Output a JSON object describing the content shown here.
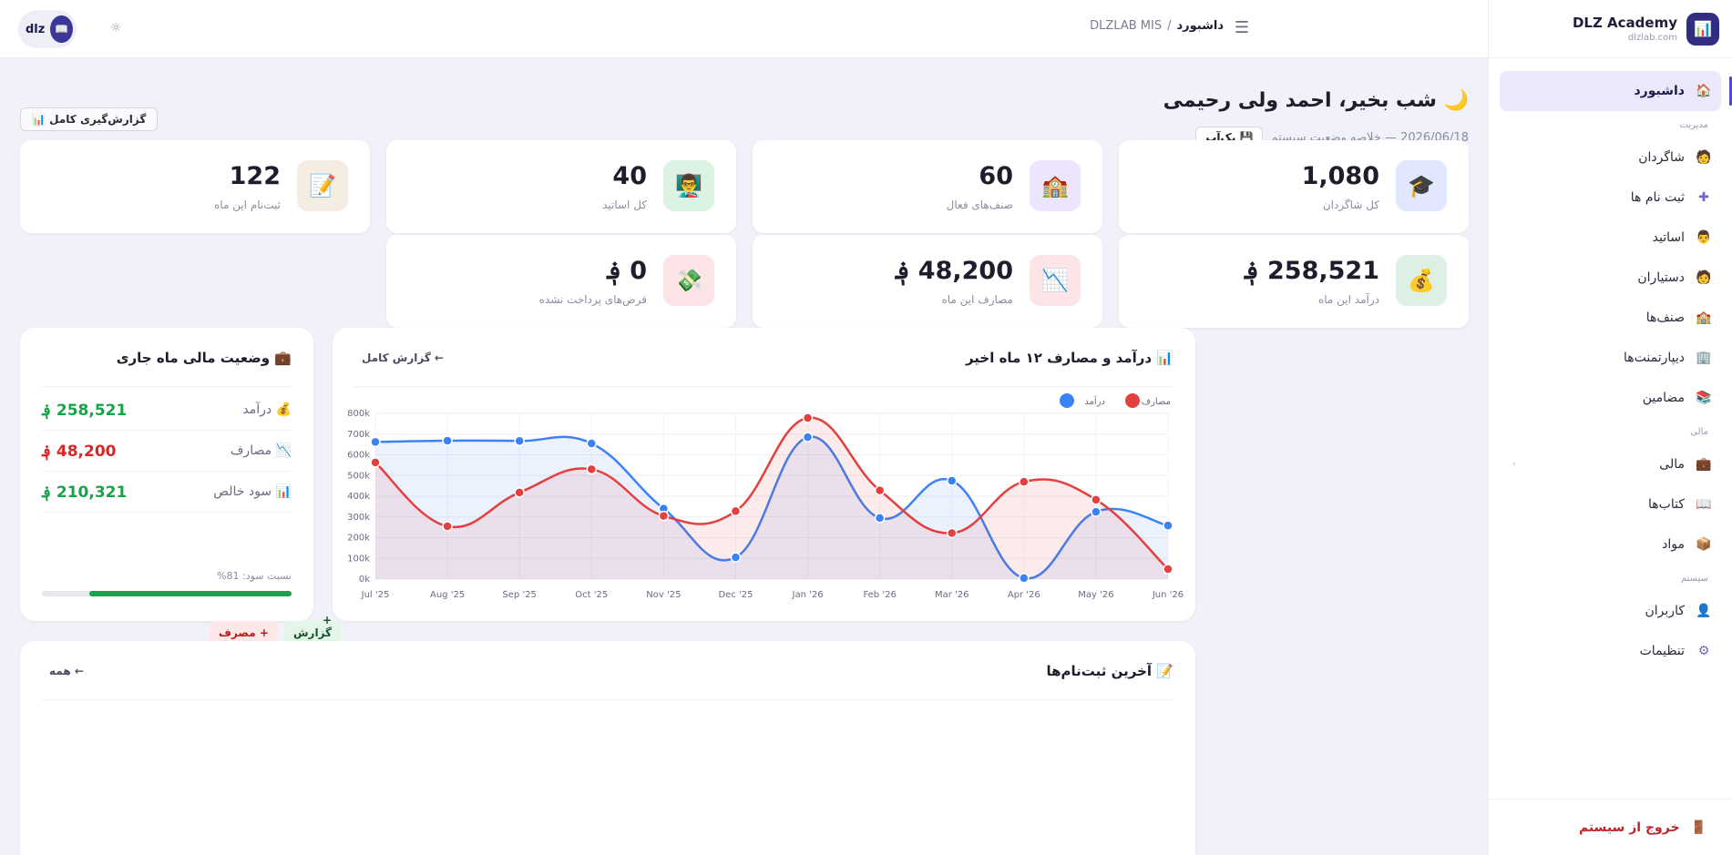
{
  "brand": {
    "name": "DLZ Academy",
    "domain": "dlzlab.com",
    "logo_icon": "📊"
  },
  "topbar": {
    "user_name": "dlz",
    "avatar_icon": "📖",
    "theme_icon": "☼",
    "breadcrumb_root": "DLZLAB MIS",
    "breadcrumb_sep": "/",
    "breadcrumb_current": "داشبورد",
    "menu_icon": "☰"
  },
  "sidebar": {
    "items_top": [
      {
        "label": "داشبورد",
        "icon": "🏠",
        "active": true
      }
    ],
    "section_manage": "مدیریت",
    "items_manage": [
      {
        "label": "شاگردان",
        "icon": "🧑"
      },
      {
        "label": "ثبت نام ها",
        "icon": "✚"
      },
      {
        "label": "اساتید",
        "icon": "👨"
      },
      {
        "label": "دستیاران",
        "icon": "🧑"
      },
      {
        "label": "صنف‌ها",
        "icon": "🏫"
      },
      {
        "label": "دیپارتمنت‌ها",
        "icon": "🏢"
      },
      {
        "label": "مضامین",
        "icon": "📚"
      }
    ],
    "section_finance": "مالی",
    "items_finance": [
      {
        "label": "مالی",
        "icon": "💼",
        "caret": "‹"
      },
      {
        "label": "کتاب‌ها",
        "icon": "📖"
      },
      {
        "label": "مواد",
        "icon": "📦"
      }
    ],
    "section_system": "سیستم",
    "items_system": [
      {
        "label": "کاربران",
        "icon": "👤"
      },
      {
        "label": "تنظیمات",
        "icon": "⚙"
      }
    ],
    "logout_label": "خروج از سیستم",
    "logout_icon": "🚪"
  },
  "header": {
    "greeting": "شب بخیر، احمد ولی رحیمی",
    "greeting_icon": "🌙",
    "subtitle": "2026/06/18 — خلاصه وضعیت سیستم",
    "backup_label": "بک‌آپ",
    "backup_icon": "💾",
    "full_report_label": "گزارش‌گیری کامل",
    "full_report_icon": "📊"
  },
  "stats": [
    {
      "value": "1,080",
      "label": "کل شاگردان",
      "icon": "🎓",
      "bg": "#e0e7ff"
    },
    {
      "value": "60",
      "label": "صنف‌های فعال",
      "icon": "🏫",
      "bg": "#ede4fd"
    },
    {
      "value": "40",
      "label": "کل اساتید",
      "icon": "👨‍🏫",
      "bg": "#dcf3e3"
    },
    {
      "value": "122",
      "label": "ثبت‌نام این ماه",
      "icon": "📝",
      "bg": "#f5ede2"
    },
    {
      "value": "258,521 ؋",
      "label": "درآمد این ماه",
      "icon": "💰",
      "bg": "#dcf1e4"
    },
    {
      "value": "48,200 ؋",
      "label": "مصارف این ماه",
      "icon": "📉",
      "bg": "#fde4e6"
    },
    {
      "value": "0 ؋",
      "label": "قرض‌های پرداخت نشده",
      "icon": "💸",
      "bg": "#fde4e6"
    }
  ],
  "finance": {
    "title": "وضعیت مالی ماه جاری",
    "title_icon": "💼",
    "rows": [
      {
        "label": "درآمد",
        "icon": "💰",
        "value": "258,521 ؋",
        "color": "#16a34a"
      },
      {
        "label": "مصارف",
        "icon": "📉",
        "value": "48,200 ؋",
        "color": "#dc2626"
      },
      {
        "label": "سود خالص",
        "icon": "📊",
        "value": "210,321 ؋",
        "color": "#16a34a"
      }
    ],
    "profit_ratio_label": "نسبت سود: 81%",
    "profit_ratio": 0.81,
    "btn_report": "+ گزارش کلی",
    "btn_expense": "+ مصرف"
  },
  "chart_card": {
    "title": "درآمد و مصارف ۱۲ ماه اخیر",
    "title_icon": "📊",
    "link": "گزارش کامل ←"
  },
  "chart_data": {
    "type": "line",
    "categories": [
      "Jul '25",
      "Aug '25",
      "Sep '25",
      "Oct '25",
      "Nov '25",
      "Dec '25",
      "Jan '26",
      "Feb '26",
      "Mar '26",
      "Apr '26",
      "May '26",
      "Jun '26"
    ],
    "series": [
      {
        "name": "درآمد",
        "color": "#3b82f6",
        "values": [
          662000,
          668000,
          667000,
          655000,
          340000,
          105000,
          685000,
          295000,
          475000,
          5000,
          325000,
          258521
        ]
      },
      {
        "name": "مصارف",
        "color": "#e53e3e",
        "values": [
          563000,
          255000,
          418000,
          530000,
          305000,
          328000,
          778000,
          428000,
          222000,
          470000,
          383000,
          48200
        ]
      }
    ],
    "y_ticks": [
      "0k",
      "100k",
      "200k",
      "300k",
      "400k",
      "500k",
      "600k",
      "700k",
      "800k"
    ],
    "ylim": [
      0,
      800000
    ],
    "legend_position": "top-right",
    "grid": true
  },
  "enroll_card": {
    "title": "آخرین ثبت‌نام‌ها",
    "title_icon": "📝",
    "link": "همه ←"
  }
}
